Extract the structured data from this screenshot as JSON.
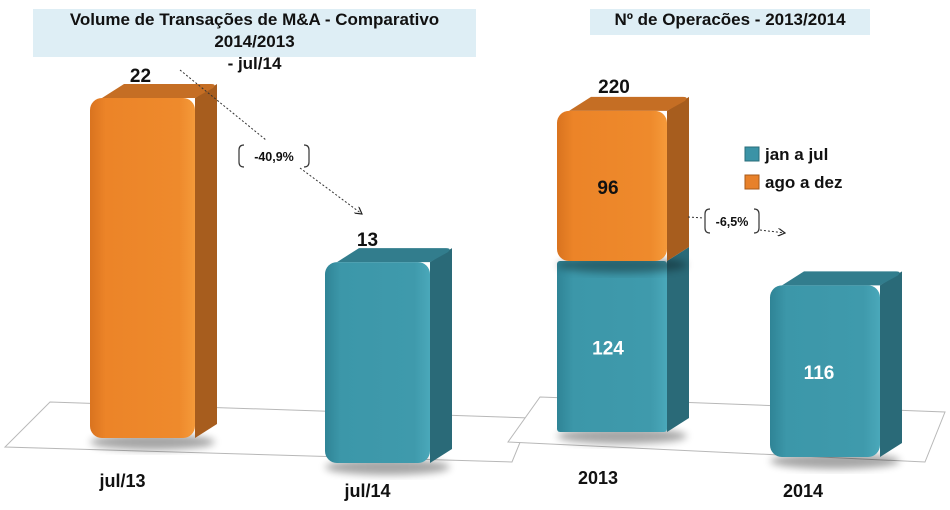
{
  "chart_data": [
    {
      "type": "bar",
      "title_line1": "Volume de Transações de M&A - Comparativo 2014/2013",
      "title_line2": "-  jul/14",
      "categories": [
        "jul/13",
        "jul/14"
      ],
      "values": [
        22,
        13
      ],
      "value_labels": [
        "22",
        "13"
      ],
      "colors": [
        "#e8812a",
        "#3b93a6"
      ],
      "annotation": "-40,9%",
      "ylim": [
        0,
        22
      ],
      "grid": false,
      "legend": "none"
    },
    {
      "type": "bar",
      "stacked": true,
      "title": "Nº de Operacões  - 2013/2014",
      "categories": [
        "2013",
        "2014"
      ],
      "series": [
        {
          "name": "jan a jul",
          "values": [
            124,
            116
          ],
          "color": "#3b93a6"
        },
        {
          "name": "ago a dez",
          "values": [
            96,
            null
          ],
          "color": "#e8812a"
        }
      ],
      "totals": [
        220,
        null
      ],
      "total_labels": [
        "220",
        ""
      ],
      "segment_labels": {
        "jan a jul": [
          "124",
          "116"
        ],
        "ago a dez": [
          "96",
          ""
        ]
      },
      "annotation": "-6,5%",
      "ylim": [
        0,
        220
      ],
      "grid": false,
      "legend": "right"
    }
  ]
}
